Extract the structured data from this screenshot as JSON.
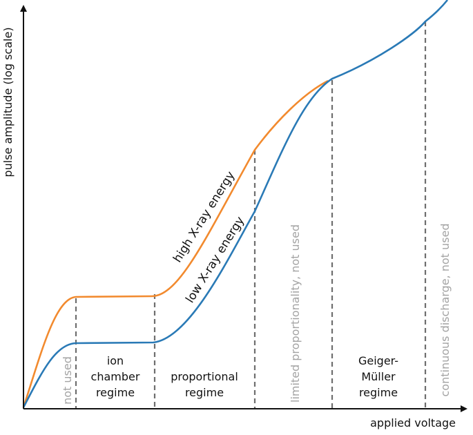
{
  "axes": {
    "x_label": "applied voltage",
    "y_label": "pulse amplitude (log scale)"
  },
  "curves": {
    "high": {
      "label": "high X-ray energy",
      "color": "#f28a2e"
    },
    "low": {
      "label": "low X-ray energy",
      "color": "#2a7ab6"
    }
  },
  "colors": {
    "axis": "#111111",
    "divider": "#6e6e6e",
    "muted_text": "#a3a3a3"
  },
  "regimes": {
    "not_used": "not used",
    "ion_chamber": [
      "ion",
      "chamber",
      "regime"
    ],
    "proportional": [
      "proportional",
      "regime"
    ],
    "limited": "limited proportionality, not used",
    "geiger": [
      "Geiger-",
      "Müller",
      "regime"
    ],
    "discharge": "continuous discharge, not used"
  }
}
